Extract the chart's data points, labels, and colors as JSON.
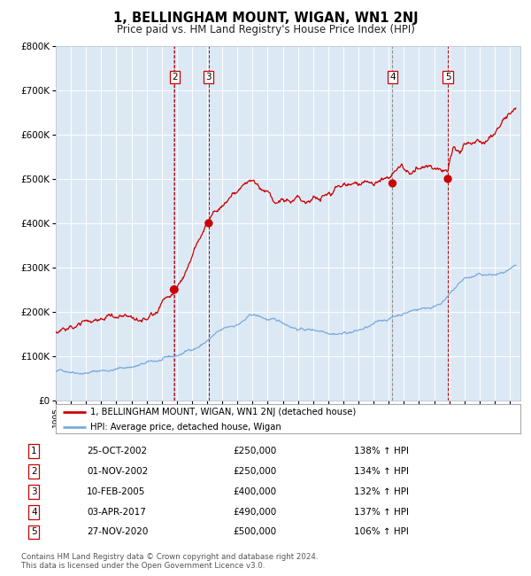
{
  "title": "1, BELLINGHAM MOUNT, WIGAN, WN1 2NJ",
  "subtitle": "Price paid vs. HM Land Registry's House Price Index (HPI)",
  "background_color": "#dce9f5",
  "ylim": [
    0,
    800000
  ],
  "yticks": [
    0,
    100000,
    200000,
    300000,
    400000,
    500000,
    600000,
    700000,
    800000
  ],
  "ytick_labels": [
    "£0",
    "£100K",
    "£200K",
    "£300K",
    "£400K",
    "£500K",
    "£600K",
    "£700K",
    "£800K"
  ],
  "xlim_start": 1995.0,
  "xlim_end": 2025.7,
  "sale_dates_num": [
    2002.805,
    2002.842,
    2005.11,
    2017.25,
    2020.91
  ],
  "sale_prices": [
    250000,
    250000,
    400000,
    490000,
    500000
  ],
  "sale_labels": [
    "1",
    "2",
    "3",
    "4",
    "5"
  ],
  "sale_marker_color": "#cc0000",
  "sale_line_color": "#cc0000",
  "hpi_line_color": "#7aabdb",
  "vlines": [
    {
      "x": 2002.805,
      "color": "#6699cc",
      "style": "--"
    },
    {
      "x": 2002.842,
      "color": "#cc0000",
      "style": "--"
    },
    {
      "x": 2005.11,
      "color": "#cc0000",
      "style": "--"
    },
    {
      "x": 2017.25,
      "color": "#888888",
      "style": "--"
    },
    {
      "x": 2020.91,
      "color": "#cc0000",
      "style": "--"
    }
  ],
  "legend_label_red": "1, BELLINGHAM MOUNT, WIGAN, WN1 2NJ (detached house)",
  "legend_label_blue": "HPI: Average price, detached house, Wigan",
  "table_data": [
    [
      "1",
      "25-OCT-2002",
      "£250,000",
      "138% ↑ HPI"
    ],
    [
      "2",
      "01-NOV-2002",
      "£250,000",
      "134% ↑ HPI"
    ],
    [
      "3",
      "10-FEB-2005",
      "£400,000",
      "132% ↑ HPI"
    ],
    [
      "4",
      "03-APR-2017",
      "£490,000",
      "137% ↑ HPI"
    ],
    [
      "5",
      "27-NOV-2020",
      "£500,000",
      "106% ↑ HPI"
    ]
  ],
  "footer": "Contains HM Land Registry data © Crown copyright and database right 2024.\nThis data is licensed under the Open Government Licence v3.0."
}
